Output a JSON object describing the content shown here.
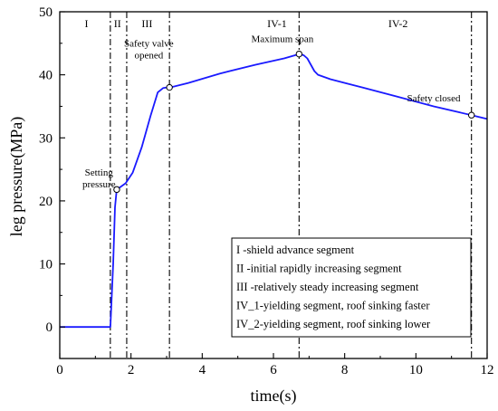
{
  "chart_data": {
    "type": "line",
    "xlabel": "time(s)",
    "ylabel": "leg pressure(MPa)",
    "xlim": [
      0,
      12
    ],
    "ylim": [
      -5,
      50
    ],
    "xticks": [
      0,
      2,
      4,
      6,
      8,
      10,
      12
    ],
    "yticks": [
      0,
      10,
      20,
      30,
      40,
      50
    ],
    "grid": false,
    "series_color": "#1a1aff",
    "series": [
      {
        "x": [
          0,
          1.0,
          1.42,
          1.5,
          1.55,
          1.6,
          1.7,
          1.85,
          2.05,
          2.3,
          2.55,
          2.75,
          2.9,
          3.0,
          3.1,
          3.6,
          4.5,
          5.5,
          6.3,
          6.72,
          6.85,
          6.95,
          7.05,
          7.15,
          7.25,
          7.6,
          8.5,
          9.5,
          10.5,
          11.56,
          12.0
        ],
        "y": [
          0,
          0,
          0,
          10,
          19,
          21.8,
          22.2,
          22.8,
          24.5,
          28.5,
          33.5,
          37.2,
          37.9,
          38.0,
          38.0,
          38.7,
          40.2,
          41.6,
          42.6,
          43.3,
          43.1,
          42.6,
          41.6,
          40.6,
          40.0,
          39.3,
          38.0,
          36.5,
          35.0,
          33.6,
          33.0
        ]
      }
    ],
    "segment_boundaries": [
      1.42,
      1.88,
      3.08,
      6.72,
      11.56
    ],
    "segment_labels": [
      {
        "text": "I",
        "x": 0.75
      },
      {
        "text": "II",
        "x": 1.62
      },
      {
        "text": "III",
        "x": 2.45
      },
      {
        "text": "IV-1",
        "x": 6.1
      },
      {
        "text": "IV-2",
        "x": 9.5
      }
    ],
    "markers": [
      {
        "x": 1.6,
        "y": 21.8
      },
      {
        "x": 3.08,
        "y": 38.0
      },
      {
        "x": 6.72,
        "y": 43.3
      },
      {
        "x": 11.56,
        "y": 33.6
      }
    ],
    "annotations": [
      {
        "lines": [
          "Setting",
          "pressure"
        ],
        "x": 1.1,
        "y": 24.0
      },
      {
        "lines": [
          "Safety valve",
          "opened"
        ],
        "x": 2.5,
        "y": 44.5
      },
      {
        "lines": [
          "Maximum span"
        ],
        "x": 6.25,
        "y": 45.2
      },
      {
        "lines": [
          "Safety closed"
        ],
        "x": 10.5,
        "y": 35.8
      }
    ],
    "legend": {
      "placement": "bottom-right",
      "entries": [
        "I   -shield advance segment",
        "II  -initial rapidly increasing segment",
        "III -relatively steady increasing segment",
        "IV_1-yielding segment, roof sinking faster",
        "IV_2-yielding segment, roof sinking lower"
      ]
    }
  }
}
